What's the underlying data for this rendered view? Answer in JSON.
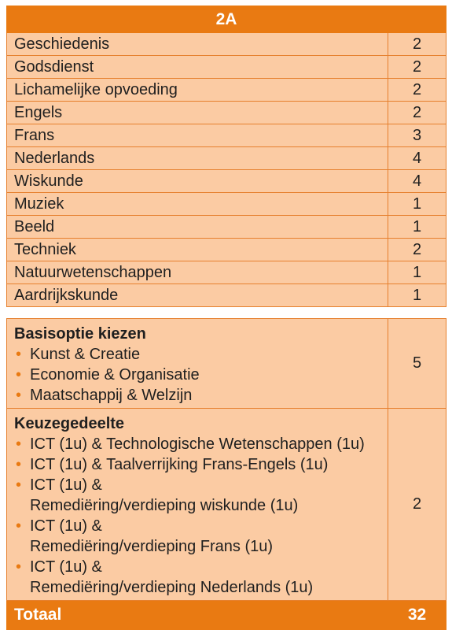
{
  "header": {
    "title": "2A"
  },
  "subjects": [
    {
      "name": "Geschiedenis",
      "hours": "2"
    },
    {
      "name": "Godsdienst",
      "hours": "2"
    },
    {
      "name": "Lichamelijke opvoeding",
      "hours": "2"
    },
    {
      "name": "Engels",
      "hours": "2"
    },
    {
      "name": "Frans",
      "hours": "3"
    },
    {
      "name": "Nederlands",
      "hours": "4"
    },
    {
      "name": "Wiskunde",
      "hours": "4"
    },
    {
      "name": "Muziek",
      "hours": "1"
    },
    {
      "name": "Beeld",
      "hours": "1"
    },
    {
      "name": "Techniek",
      "hours": "2"
    },
    {
      "name": "Natuurwetenschappen",
      "hours": "1"
    },
    {
      "name": "Aardrijkskunde",
      "hours": "1"
    }
  ],
  "basisoptie": {
    "title": "Basisoptie kiezen",
    "hours": "5",
    "options": [
      "Kunst & Creatie",
      "Economie & Organisatie",
      "Maatschappij & Welzijn"
    ]
  },
  "keuzegedeelte": {
    "title": "Keuzegedeelte",
    "hours": "2",
    "options": [
      [
        "ICT (1u) & Technologische Wetenschappen (1u)"
      ],
      [
        "ICT (1u) & Taalverrijking Frans-Engels (1u)"
      ],
      [
        "ICT (1u) &",
        "Remediëring/verdieping wiskunde (1u)"
      ],
      [
        "ICT (1u) &",
        "Remediëring/verdieping Frans (1u)"
      ],
      [
        "ICT (1u) &",
        "Remediëring/verdieping Nederlands (1u)"
      ]
    ]
  },
  "total": {
    "label": "Totaal",
    "hours": "32"
  },
  "colors": {
    "accent": "#e97a12",
    "cell": "#fbcba3",
    "border": "#e6802e"
  }
}
